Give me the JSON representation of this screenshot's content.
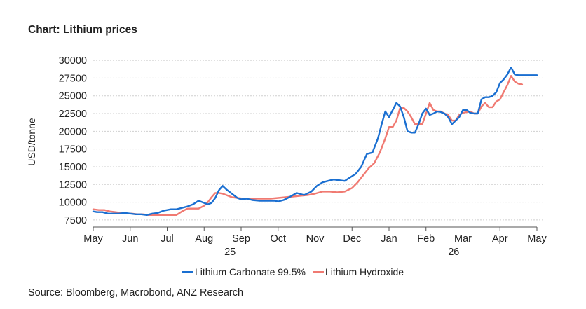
{
  "title": "Chart: Lithium prices",
  "source": "Source: Bloomberg, Macrobond, ANZ Research",
  "chart_data": {
    "type": "line",
    "title": "Chart: Lithium prices",
    "ylabel": "USD/tonne",
    "xlabel": "",
    "ylim": [
      6500,
      30500
    ],
    "yticks": [
      7500,
      10000,
      12500,
      15000,
      17500,
      20000,
      22500,
      25000,
      27500,
      30000
    ],
    "x_tick_labels": [
      "May",
      "Jun",
      "Jul",
      "Aug",
      "Sep",
      "Oct",
      "Nov",
      "Dec",
      "Jan",
      "Feb",
      "Mar",
      "Apr",
      "May"
    ],
    "x_tick_positions": [
      0,
      1,
      2,
      3,
      4,
      5,
      6,
      7,
      8,
      9,
      10,
      11,
      12
    ],
    "year_labels": [
      {
        "label": "25",
        "at": 3.7
      },
      {
        "label": "26",
        "at": 9.75
      }
    ],
    "x_range": [
      0,
      12
    ],
    "grid": true,
    "legend_position": "bottom",
    "series": [
      {
        "name": "Lithium Carbonate 99.5%",
        "color": "#1a6fd1",
        "x": [
          0,
          0.1,
          0.25,
          0.4,
          0.55,
          0.7,
          0.85,
          1.0,
          1.15,
          1.3,
          1.45,
          1.6,
          1.75,
          1.9,
          2.0,
          2.1,
          2.25,
          2.4,
          2.55,
          2.7,
          2.85,
          3.0,
          3.1,
          3.2,
          3.3,
          3.4,
          3.5,
          3.6,
          3.75,
          3.9,
          4.0,
          4.15,
          4.3,
          4.5,
          4.7,
          4.9,
          5.0,
          5.15,
          5.3,
          5.5,
          5.7,
          5.9,
          6.05,
          6.2,
          6.35,
          6.5,
          6.65,
          6.8,
          6.95,
          7.1,
          7.25,
          7.4,
          7.55,
          7.7,
          7.8,
          7.9,
          8.0,
          8.1,
          8.2,
          8.3,
          8.4,
          8.5,
          8.6,
          8.7,
          8.8,
          8.9,
          9.0,
          9.1,
          9.2,
          9.3,
          9.4,
          9.5,
          9.6,
          9.7,
          9.8,
          9.9,
          10.0,
          10.1,
          10.2,
          10.3,
          10.4,
          10.5,
          10.6,
          10.7,
          10.8,
          10.9,
          11.0,
          11.1,
          11.2,
          11.3,
          11.4,
          11.5,
          11.6,
          11.7,
          11.8,
          11.9,
          12.0
        ],
        "values": [
          8700,
          8600,
          8600,
          8400,
          8400,
          8400,
          8500,
          8400,
          8300,
          8300,
          8200,
          8400,
          8500,
          8800,
          8900,
          9000,
          9000,
          9200,
          9400,
          9700,
          10200,
          9900,
          9700,
          9900,
          10600,
          11700,
          12300,
          11800,
          11200,
          10600,
          10400,
          10500,
          10300,
          10200,
          10200,
          10200,
          10100,
          10300,
          10700,
          11300,
          11000,
          11500,
          12300,
          12800,
          13000,
          13200,
          13100,
          13000,
          13500,
          14000,
          15000,
          16800,
          17000,
          19000,
          21000,
          22800,
          22000,
          23000,
          24000,
          23500,
          22000,
          20000,
          19800,
          19800,
          21000,
          22500,
          23200,
          22300,
          22500,
          22800,
          22700,
          22500,
          22000,
          21000,
          21500,
          22000,
          23000,
          23000,
          22600,
          22500,
          22500,
          24500,
          24800,
          24800,
          25000,
          25500,
          26800,
          27300,
          28000,
          29000,
          28000,
          27900,
          27900,
          27900,
          27900,
          27900,
          27900
        ]
      },
      {
        "name": "Lithium Hydroxide",
        "color": "#f07a72",
        "x": [
          0,
          0.15,
          0.3,
          0.45,
          0.6,
          0.75,
          0.9,
          1.05,
          1.2,
          1.35,
          1.5,
          1.65,
          1.8,
          1.95,
          2.1,
          2.25,
          2.4,
          2.55,
          2.7,
          2.85,
          3.0,
          3.1,
          3.2,
          3.3,
          3.4,
          3.5,
          3.6,
          3.75,
          3.9,
          4.05,
          4.2,
          4.4,
          4.6,
          4.8,
          5.0,
          5.2,
          5.4,
          5.6,
          5.8,
          6.0,
          6.2,
          6.4,
          6.6,
          6.8,
          7.0,
          7.15,
          7.3,
          7.45,
          7.6,
          7.75,
          7.9,
          8.0,
          8.1,
          8.2,
          8.3,
          8.4,
          8.5,
          8.6,
          8.7,
          8.8,
          8.9,
          9.0,
          9.1,
          9.2,
          9.3,
          9.4,
          9.5,
          9.6,
          9.7,
          9.8,
          9.9,
          10.0,
          10.1,
          10.2,
          10.3,
          10.4,
          10.5,
          10.6,
          10.7,
          10.8,
          10.9,
          11.0,
          11.1,
          11.2,
          11.3,
          11.4,
          11.5,
          11.6
        ],
        "values": [
          9000,
          8900,
          8900,
          8700,
          8600,
          8500,
          8400,
          8400,
          8300,
          8300,
          8200,
          8200,
          8200,
          8200,
          8200,
          8200,
          8700,
          9100,
          9100,
          9100,
          9500,
          10000,
          10700,
          11300,
          11300,
          11200,
          11000,
          10700,
          10600,
          10500,
          10500,
          10500,
          10500,
          10500,
          10600,
          10700,
          10800,
          10900,
          11000,
          11200,
          11500,
          11500,
          11400,
          11500,
          12000,
          12800,
          13800,
          14800,
          15500,
          17000,
          19000,
          20600,
          20600,
          21500,
          23300,
          23300,
          22800,
          22000,
          21000,
          21000,
          21000,
          22500,
          24000,
          23000,
          22800,
          22800,
          22500,
          22300,
          21500,
          21500,
          22300,
          22600,
          22700,
          22800,
          22500,
          22500,
          23500,
          24000,
          23400,
          23400,
          24200,
          24500,
          25500,
          26500,
          27800,
          27000,
          26700,
          26600
        ]
      }
    ]
  }
}
